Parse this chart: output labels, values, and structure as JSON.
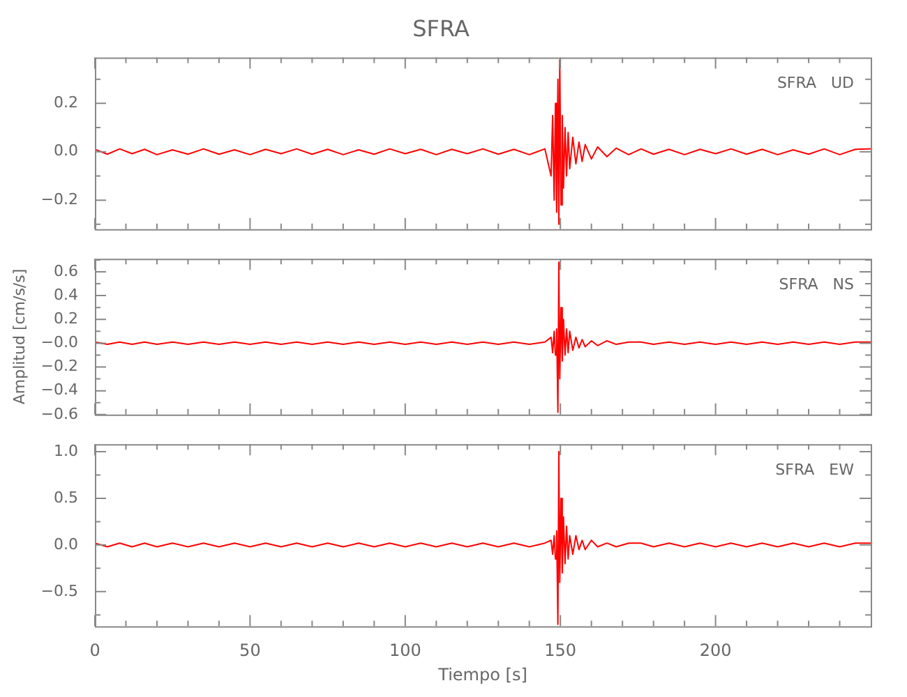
{
  "chart_data": [
    {
      "type": "line",
      "title": "SFRA",
      "x": [
        0,
        4,
        8,
        12,
        16,
        20,
        25,
        30,
        35,
        40,
        45,
        50,
        55,
        60,
        65,
        70,
        75,
        80,
        85,
        90,
        95,
        100,
        105,
        110,
        115,
        120,
        125,
        130,
        135,
        140,
        145,
        147,
        147.5,
        148,
        148.4,
        148.8,
        149.2,
        149.5,
        149.8,
        150.2,
        150.6,
        151,
        151.5,
        152,
        152.5,
        153,
        154,
        155,
        156,
        157,
        158,
        160,
        162,
        165,
        168,
        172,
        176,
        180,
        185,
        190,
        195,
        200,
        205,
        210,
        215,
        220,
        225,
        230,
        235,
        240,
        245,
        250
      ],
      "series": [
        {
          "color": "#ff0000",
          "values": [
            0.01,
            -0.01,
            0.012,
            -0.008,
            0.01,
            -0.012,
            0.008,
            -0.01,
            0.012,
            -0.01,
            0.008,
            -0.012,
            0.01,
            -0.008,
            0.012,
            -0.01,
            0.01,
            -0.012,
            0.008,
            -0.01,
            0.012,
            -0.008,
            0.01,
            -0.012,
            0.01,
            -0.008,
            0.012,
            -0.01,
            0.01,
            -0.012,
            0.012,
            -0.1,
            0.15,
            -0.2,
            0.2,
            -0.25,
            0.3,
            -0.3,
            0.38,
            -0.22,
            0.15,
            -0.15,
            0.1,
            -0.1,
            0.08,
            -0.07,
            0.06,
            -0.05,
            0.04,
            -0.04,
            0.03,
            -0.03,
            0.02,
            -0.02,
            0.015,
            -0.012,
            0.012,
            -0.01,
            0.01,
            -0.012,
            0.01,
            -0.008,
            0.012,
            -0.01,
            0.01,
            -0.012,
            0.008,
            -0.01,
            0.012,
            -0.012,
            0.01,
            0.012
          ]
        }
      ],
      "xlim": [
        0,
        250
      ],
      "xticks": [
        0,
        {
          "value": 10,
          "label": null
        },
        {
          "value": 20,
          "label": null
        },
        {
          "value": 30,
          "label": null
        },
        {
          "value": 40,
          "label": null
        },
        50,
        {
          "value": 60,
          "label": null
        },
        {
          "value": 70,
          "label": null
        },
        {
          "value": 80,
          "label": null
        },
        {
          "value": 90,
          "label": null
        },
        100,
        {
          "value": 110,
          "label": null
        },
        {
          "value": 120,
          "label": null
        },
        {
          "value": 130,
          "label": null
        },
        {
          "value": 140,
          "label": null
        },
        150,
        {
          "value": 160,
          "label": null
        },
        {
          "value": 170,
          "label": null
        },
        {
          "value": 180,
          "label": null
        },
        {
          "value": 190,
          "label": null
        },
        200,
        {
          "value": 210,
          "label": null
        },
        {
          "value": 220,
          "label": null
        },
        {
          "value": 230,
          "label": null
        },
        {
          "value": 240,
          "label": null
        }
      ],
      "ylim": [
        -0.32,
        0.39
      ],
      "yticks": [
        {
          "value": -0.3,
          "label": null
        },
        {
          "value": -0.2,
          "label": "−0.2"
        },
        {
          "value": -0.1,
          "label": null
        },
        {
          "value": 0,
          "label": "0.0"
        },
        {
          "value": 0.1,
          "label": null
        },
        {
          "value": 0.2,
          "label": "0.2"
        },
        {
          "value": 0.3,
          "label": null
        }
      ],
      "tick_labels": "y",
      "annotations": [
        "SFRA   UD"
      ]
    },
    {
      "type": "line",
      "ylabel": "Amplitud [cm/s/s]",
      "x": [
        0,
        4,
        8,
        12,
        16,
        20,
        25,
        30,
        35,
        40,
        45,
        50,
        55,
        60,
        65,
        70,
        75,
        80,
        85,
        90,
        95,
        100,
        105,
        110,
        115,
        120,
        125,
        130,
        135,
        140,
        145,
        147,
        147.5,
        148,
        148.4,
        148.8,
        149.2,
        149.5,
        149.8,
        150.2,
        150.6,
        151,
        151.5,
        152,
        152.5,
        153,
        154,
        155,
        156,
        157,
        158,
        160,
        162,
        165,
        168,
        172,
        176,
        180,
        185,
        190,
        195,
        200,
        205,
        210,
        215,
        220,
        225,
        230,
        235,
        240,
        245,
        250
      ],
      "series": [
        {
          "color": "#ff0000",
          "values": [
            0.01,
            -0.01,
            0.01,
            -0.01,
            0.01,
            -0.01,
            0.01,
            -0.01,
            0.01,
            -0.01,
            0.01,
            -0.01,
            0.01,
            -0.01,
            0.01,
            -0.01,
            0.01,
            -0.01,
            0.01,
            -0.01,
            0.01,
            -0.01,
            0.01,
            -0.01,
            0.01,
            -0.01,
            0.01,
            -0.01,
            0.01,
            -0.01,
            0.01,
            0.05,
            -0.08,
            0.1,
            -0.1,
            0.12,
            -0.58,
            0.68,
            -0.3,
            0.3,
            -0.15,
            0.2,
            -0.1,
            0.12,
            -0.08,
            0.1,
            -0.06,
            0.05,
            -0.04,
            0.03,
            -0.03,
            0.02,
            -0.02,
            0.02,
            -0.01,
            0.01,
            0.01,
            -0.01,
            0.01,
            -0.01,
            0.01,
            -0.01,
            0.01,
            -0.01,
            0.01,
            -0.01,
            0.01,
            -0.01,
            0.01,
            -0.01,
            0.01,
            0.01
          ]
        }
      ],
      "xlim": [
        0,
        250
      ],
      "xticks": [
        0,
        {
          "value": 10,
          "label": null
        },
        {
          "value": 20,
          "label": null
        },
        {
          "value": 30,
          "label": null
        },
        {
          "value": 40,
          "label": null
        },
        50,
        {
          "value": 60,
          "label": null
        },
        {
          "value": 70,
          "label": null
        },
        {
          "value": 80,
          "label": null
        },
        {
          "value": 90,
          "label": null
        },
        100,
        {
          "value": 110,
          "label": null
        },
        {
          "value": 120,
          "label": null
        },
        {
          "value": 130,
          "label": null
        },
        {
          "value": 140,
          "label": null
        },
        150,
        {
          "value": 160,
          "label": null
        },
        {
          "value": 170,
          "label": null
        },
        {
          "value": 180,
          "label": null
        },
        {
          "value": 190,
          "label": null
        },
        200,
        {
          "value": 210,
          "label": null
        },
        {
          "value": 220,
          "label": null
        },
        {
          "value": 230,
          "label": null
        },
        {
          "value": 240,
          "label": null
        }
      ],
      "ylim": [
        -0.6,
        0.71
      ],
      "yticks": [
        {
          "value": -0.6,
          "label": "−0.6"
        },
        {
          "value": -0.5,
          "label": null
        },
        {
          "value": -0.4,
          "label": "−0.4"
        },
        {
          "value": -0.3,
          "label": null
        },
        {
          "value": -0.2,
          "label": "−0.2"
        },
        {
          "value": -0.1,
          "label": null
        },
        {
          "value": 0,
          "label": "−0.0"
        },
        {
          "value": 0.1,
          "label": null
        },
        {
          "value": 0.2,
          "label": "0.2"
        },
        {
          "value": 0.3,
          "label": null
        },
        {
          "value": 0.4,
          "label": "0.4"
        },
        {
          "value": 0.5,
          "label": null
        },
        {
          "value": 0.6,
          "label": "0.6"
        },
        {
          "value": 0.7,
          "label": null
        }
      ],
      "tick_labels": "y",
      "annotations": [
        "SFRA   NS"
      ]
    },
    {
      "type": "line",
      "xlabel": "Tiempo [s]",
      "x": [
        0,
        4,
        8,
        12,
        16,
        20,
        25,
        30,
        35,
        40,
        45,
        50,
        55,
        60,
        65,
        70,
        75,
        80,
        85,
        90,
        95,
        100,
        105,
        110,
        115,
        120,
        125,
        130,
        135,
        140,
        145,
        147,
        147.5,
        148,
        148.4,
        148.8,
        149.2,
        149.5,
        149.8,
        150.2,
        150.6,
        151,
        151.5,
        152,
        152.5,
        153,
        154,
        155,
        156,
        157,
        158,
        160,
        162,
        165,
        168,
        172,
        176,
        180,
        185,
        190,
        195,
        200,
        205,
        210,
        215,
        220,
        225,
        230,
        235,
        240,
        245,
        250
      ],
      "series": [
        {
          "color": "#ff0000",
          "values": [
            0.02,
            -0.02,
            0.02,
            -0.02,
            0.02,
            -0.02,
            0.02,
            -0.02,
            0.02,
            -0.02,
            0.02,
            -0.02,
            0.02,
            -0.02,
            0.02,
            -0.02,
            0.02,
            -0.02,
            0.02,
            -0.02,
            0.02,
            -0.02,
            0.02,
            -0.02,
            0.02,
            -0.02,
            0.02,
            -0.02,
            0.02,
            -0.02,
            0.02,
            0.05,
            -0.1,
            0.1,
            -0.15,
            0.15,
            -0.85,
            1.0,
            -0.4,
            0.5,
            -0.3,
            0.3,
            -0.2,
            0.2,
            -0.15,
            0.1,
            -0.1,
            0.1,
            -0.05,
            0.05,
            -0.05,
            0.05,
            -0.02,
            0.02,
            -0.02,
            0.02,
            0.02,
            -0.02,
            0.02,
            -0.02,
            0.02,
            -0.02,
            0.02,
            -0.02,
            0.02,
            -0.02,
            0.02,
            -0.02,
            0.02,
            -0.02,
            0.02,
            0.02
          ]
        }
      ],
      "xlim": [
        0,
        250
      ],
      "xticks": [
        0,
        {
          "value": 10,
          "label": null
        },
        {
          "value": 20,
          "label": null
        },
        {
          "value": 30,
          "label": null
        },
        {
          "value": 40,
          "label": null
        },
        50,
        {
          "value": 60,
          "label": null
        },
        {
          "value": 70,
          "label": null
        },
        {
          "value": 80,
          "label": null
        },
        {
          "value": 90,
          "label": null
        },
        100,
        {
          "value": 110,
          "label": null
        },
        {
          "value": 120,
          "label": null
        },
        {
          "value": 130,
          "label": null
        },
        {
          "value": 140,
          "label": null
        },
        150,
        {
          "value": 160,
          "label": null
        },
        {
          "value": 170,
          "label": null
        },
        {
          "value": 180,
          "label": null
        },
        {
          "value": 190,
          "label": null
        },
        200,
        {
          "value": 210,
          "label": null
        },
        {
          "value": 220,
          "label": null
        },
        {
          "value": 230,
          "label": null
        },
        {
          "value": 240,
          "label": null
        }
      ],
      "ylim": [
        -0.87,
        1.08
      ],
      "yticks": [
        {
          "value": -0.75,
          "label": null
        },
        {
          "value": -0.5,
          "label": "−0.5"
        },
        {
          "value": -0.25,
          "label": null
        },
        {
          "value": 0,
          "label": "0.0"
        },
        {
          "value": 0.25,
          "label": null
        },
        {
          "value": 0.5,
          "label": "0.5"
        },
        {
          "value": 0.75,
          "label": null
        },
        {
          "value": 1.0,
          "label": "1.0"
        }
      ],
      "annotations": [
        "SFRA   EW"
      ]
    }
  ]
}
